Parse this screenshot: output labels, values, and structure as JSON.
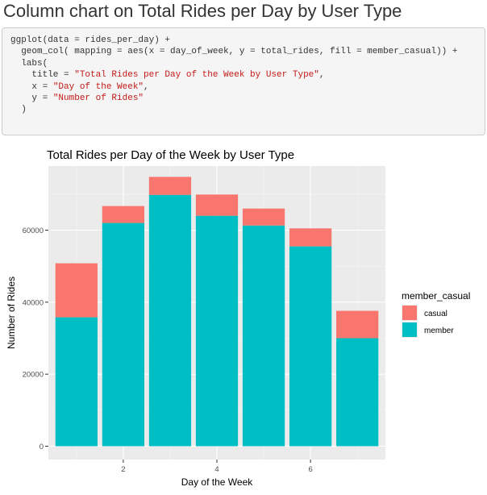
{
  "heading": "Column chart on Total Rides per Day by User Type",
  "code": {
    "lines": [
      [
        {
          "t": "ggplot(data = rides_per_day) +"
        }
      ],
      [
        {
          "t": "  geom_col( mapping = aes(x = day_of_week, y = total_rides, fill = member_casual)) +"
        }
      ],
      [
        {
          "t": "  labs("
        }
      ],
      [
        {
          "t": "    title = "
        },
        {
          "t": "\"Total Rides per Day of the Week by User Type\"",
          "s": true
        },
        {
          "t": ","
        }
      ],
      [
        {
          "t": "    x = "
        },
        {
          "t": "\"Day of the Week\"",
          "s": true
        },
        {
          "t": ","
        }
      ],
      [
        {
          "t": "    y = "
        },
        {
          "t": "\"Number of Rides\"",
          "s": true
        }
      ],
      [
        {
          "t": "  )"
        }
      ]
    ]
  },
  "colors": {
    "casual": "#F8766D",
    "member": "#00BFC4",
    "panel": "#EBEBEB",
    "grid_major": "#FFFFFF",
    "grid_minor": "#F5F5F5",
    "string": "#C41A16"
  },
  "chart_data": {
    "type": "bar",
    "stacked": true,
    "title": "Total Rides per Day of the Week by User Type",
    "xlabel": "Day of the Week",
    "ylabel": "Number of Rides",
    "x": [
      1,
      2,
      3,
      4,
      5,
      6,
      7
    ],
    "xticks": [
      2,
      4,
      6
    ],
    "xlim": [
      0.4,
      7.6
    ],
    "yticks": [
      0,
      20000,
      40000,
      60000
    ],
    "ylim": [
      -3700,
      77800
    ],
    "series": [
      {
        "name": "member",
        "values": [
          35800,
          62000,
          69800,
          64000,
          61300,
          55500,
          30000
        ]
      },
      {
        "name": "casual",
        "values": [
          15000,
          4700,
          5000,
          5900,
          4700,
          5000,
          7600
        ]
      }
    ],
    "legend": {
      "title": "member_casual",
      "entries": [
        "casual",
        "member"
      ],
      "position": "right"
    },
    "grid": true
  }
}
